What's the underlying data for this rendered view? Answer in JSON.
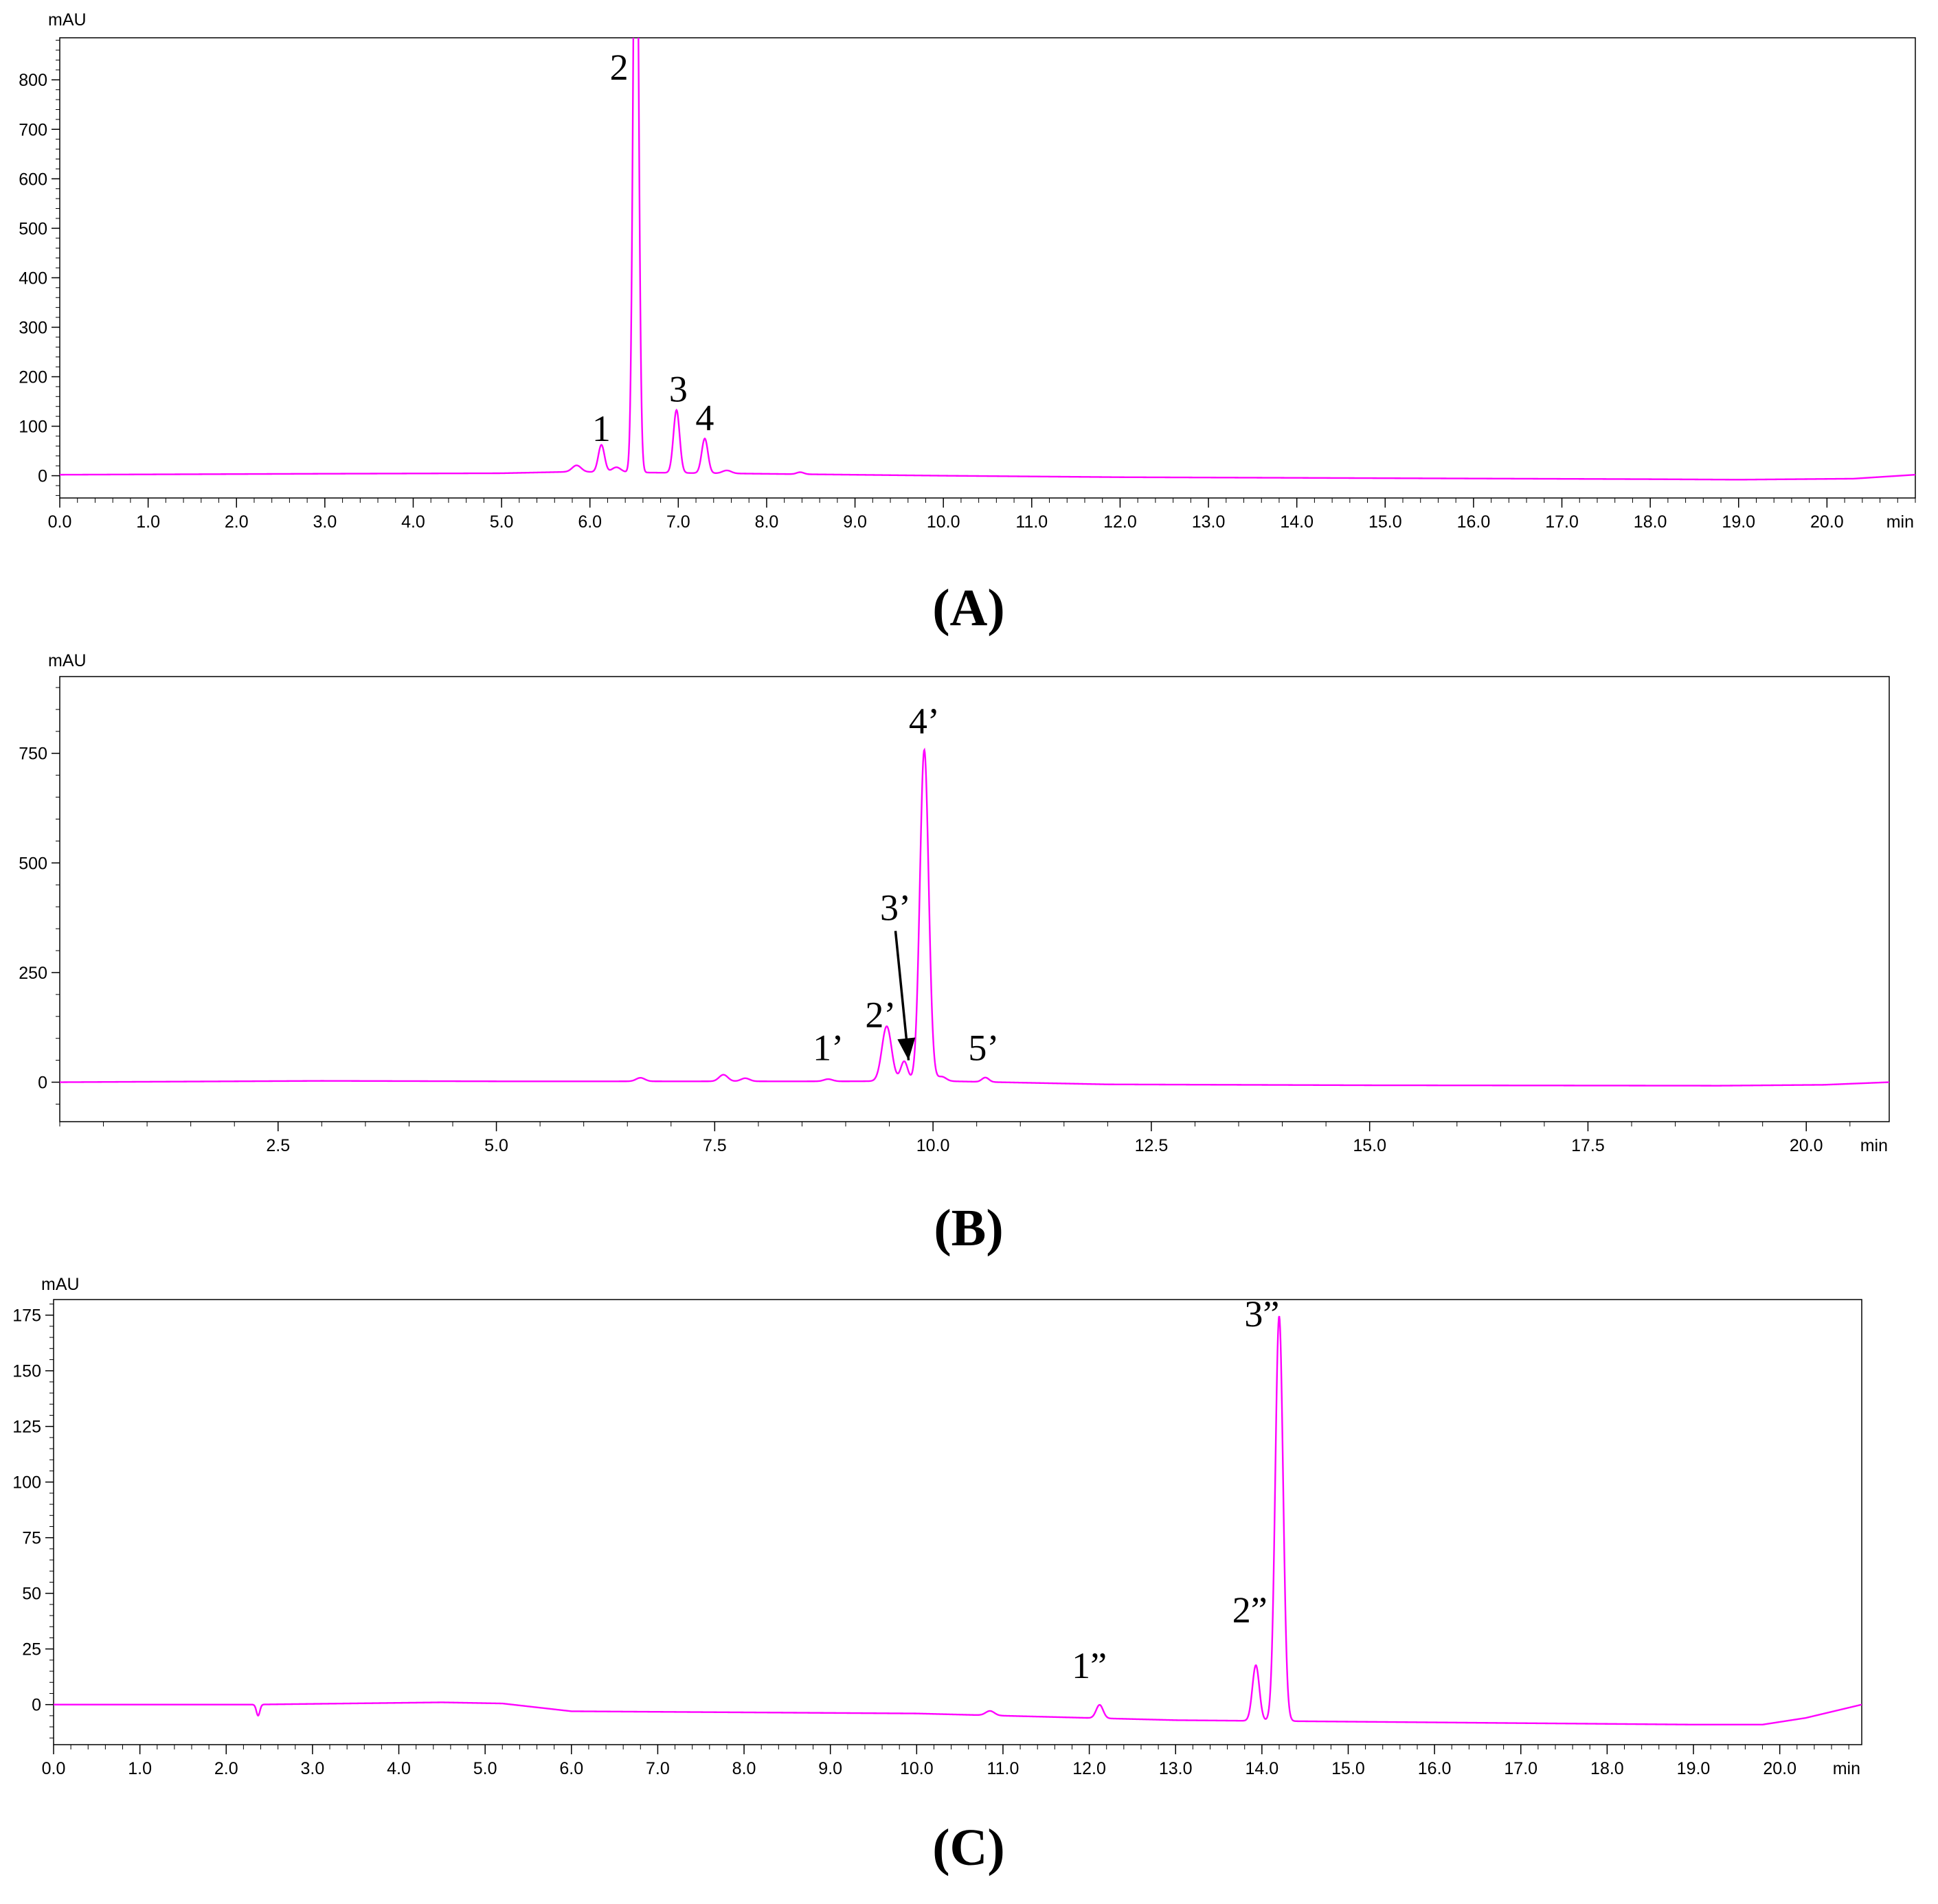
{
  "trace_color": "#ff00ff",
  "chart_data": [
    {
      "type": "line",
      "panel": "(A)",
      "ylabel": "mAU",
      "xunit": "min",
      "xlim": [
        0,
        21
      ],
      "ylim": [
        -45,
        885
      ],
      "y_ticks": [
        0,
        100,
        200,
        300,
        400,
        500,
        600,
        700,
        800
      ],
      "x_ticks": [
        0.0,
        1.0,
        2.0,
        3.0,
        4.0,
        5.0,
        6.0,
        7.0,
        8.0,
        9.0,
        10.0,
        11.0,
        12.0,
        13.0,
        14.0,
        15.0,
        16.0,
        17.0,
        18.0,
        19.0,
        20.0
      ],
      "x_tick_labels": [
        "0.0",
        "1.0",
        "2.0",
        "3.0",
        "4.0",
        "5.0",
        "6.0",
        "7.0",
        "8.0",
        "9.0",
        "10.0",
        "11.0",
        "12.0",
        "13.0",
        "14.0",
        "15.0",
        "16.0",
        "17.0",
        "18.0",
        "19.0",
        "20.0"
      ],
      "y_tick_labels": [
        "0",
        "100",
        "200",
        "300",
        "400",
        "500",
        "600",
        "700",
        "800"
      ],
      "baseline": [
        [
          0,
          2
        ],
        [
          3,
          4
        ],
        [
          5,
          5
        ],
        [
          5.8,
          8
        ],
        [
          10,
          0
        ],
        [
          12,
          -3
        ],
        [
          18,
          -7
        ],
        [
          19,
          -8
        ],
        [
          20.3,
          -6
        ],
        [
          21,
          2
        ]
      ],
      "peaks": [
        {
          "x": 5.85,
          "y": 13,
          "w": 0.05
        },
        {
          "x": 6.13,
          "y": 55,
          "w": 0.035
        },
        {
          "x": 6.3,
          "y": 10,
          "w": 0.05
        },
        {
          "x": 6.52,
          "y": 1400,
          "w": 0.03
        },
        {
          "x": 6.98,
          "y": 127,
          "w": 0.035
        },
        {
          "x": 7.3,
          "y": 70,
          "w": 0.035
        },
        {
          "x": 7.55,
          "y": 6,
          "w": 0.05
        },
        {
          "x": 8.38,
          "y": 4,
          "w": 0.04
        }
      ],
      "annotations": [
        {
          "text": "1",
          "x": 6.13,
          "y": 70
        },
        {
          "text": "2",
          "x": 6.33,
          "y": 800
        },
        {
          "text": "3",
          "x": 7.0,
          "y": 150
        },
        {
          "text": "4",
          "x": 7.3,
          "y": 92
        }
      ]
    },
    {
      "type": "line",
      "panel": "(B)",
      "ylabel": "mAU",
      "xunit": "min",
      "xlim": [
        0,
        20.95
      ],
      "ylim": [
        -90,
        925
      ],
      "y_ticks": [
        0,
        250,
        500,
        750
      ],
      "x_ticks": [
        2.5,
        5.0,
        7.5,
        10.0,
        12.5,
        15.0,
        17.5,
        20.0
      ],
      "x_tick_labels": [
        "2.5",
        "5.0",
        "7.5",
        "10.0",
        "12.5",
        "15.0",
        "17.5",
        "20.0"
      ],
      "y_tick_labels": [
        "0",
        "250",
        "500",
        "750"
      ],
      "baseline": [
        [
          0,
          0
        ],
        [
          3,
          3
        ],
        [
          5,
          2
        ],
        [
          9,
          2
        ],
        [
          10,
          3
        ],
        [
          12,
          -5
        ],
        [
          15,
          -7
        ],
        [
          19,
          -8
        ],
        [
          20.2,
          -6
        ],
        [
          20.95,
          0
        ]
      ],
      "peaks": [
        {
          "x": 6.65,
          "y": 8,
          "w": 0.05
        },
        {
          "x": 7.6,
          "y": 15,
          "w": 0.05
        },
        {
          "x": 7.85,
          "y": 7,
          "w": 0.05
        },
        {
          "x": 8.8,
          "y": 5,
          "w": 0.05
        },
        {
          "x": 9.47,
          "y": 125,
          "w": 0.055
        },
        {
          "x": 9.67,
          "y": 45,
          "w": 0.04
        },
        {
          "x": 9.9,
          "y": 755,
          "w": 0.05
        },
        {
          "x": 10.1,
          "y": 10,
          "w": 0.05
        },
        {
          "x": 10.6,
          "y": 10,
          "w": 0.04
        }
      ],
      "annotations": [
        {
          "text": "1’",
          "x": 8.8,
          "y": 50
        },
        {
          "text": "2’",
          "x": 9.4,
          "y": 125
        },
        {
          "text": "3’",
          "x": 9.57,
          "y": 370
        },
        {
          "text": "4’",
          "x": 9.9,
          "y": 795
        },
        {
          "text": "5’",
          "x": 10.58,
          "y": 50
        }
      ],
      "arrows": [
        {
          "from": [
            9.57,
            345
          ],
          "to": [
            9.72,
            50
          ]
        }
      ]
    },
    {
      "type": "line",
      "panel": "(C)",
      "ylabel": "mAU",
      "xunit": "min",
      "xlim": [
        0,
        20.95
      ],
      "ylim": [
        -18,
        182
      ],
      "y_ticks": [
        0,
        25,
        50,
        75,
        100,
        125,
        150,
        175
      ],
      "x_ticks": [
        0.0,
        1.0,
        2.0,
        3.0,
        4.0,
        5.0,
        6.0,
        7.0,
        8.0,
        9.0,
        10.0,
        11.0,
        12.0,
        13.0,
        14.0,
        15.0,
        16.0,
        17.0,
        18.0,
        19.0,
        20.0
      ],
      "x_tick_labels": [
        "0.0",
        "1.0",
        "2.0",
        "3.0",
        "4.0",
        "5.0",
        "6.0",
        "7.0",
        "8.0",
        "9.0",
        "10.0",
        "11.0",
        "12.0",
        "13.0",
        "14.0",
        "15.0",
        "16.0",
        "17.0",
        "18.0",
        "19.0",
        "20.0"
      ],
      "y_tick_labels": [
        "0",
        "25",
        "50",
        "75",
        "100",
        "125",
        "150",
        "175"
      ],
      "baseline": [
        [
          0,
          0
        ],
        [
          2.3,
          0
        ],
        [
          4.5,
          1
        ],
        [
          5.2,
          0.5
        ],
        [
          6,
          -3
        ],
        [
          10,
          -4
        ],
        [
          11,
          -5
        ],
        [
          12,
          -6
        ],
        [
          13,
          -7
        ],
        [
          16,
          -8
        ],
        [
          19,
          -9
        ],
        [
          19.8,
          -9
        ],
        [
          20.3,
          -6
        ],
        [
          20.95,
          0
        ]
      ],
      "peaks": [
        {
          "x": 2.37,
          "y": -5,
          "w": 0.02
        },
        {
          "x": 10.85,
          "y": 2,
          "w": 0.05
        },
        {
          "x": 12.12,
          "y": 6,
          "w": 0.04
        },
        {
          "x": 13.93,
          "y": 25,
          "w": 0.04
        },
        {
          "x": 14.2,
          "y": 182,
          "w": 0.045
        }
      ],
      "annotations": [
        {
          "text": "1”",
          "x": 12.0,
          "y": 12
        },
        {
          "text": "2”",
          "x": 13.86,
          "y": 37
        },
        {
          "text": "3”",
          "x": 14.0,
          "y": 170
        }
      ]
    }
  ]
}
